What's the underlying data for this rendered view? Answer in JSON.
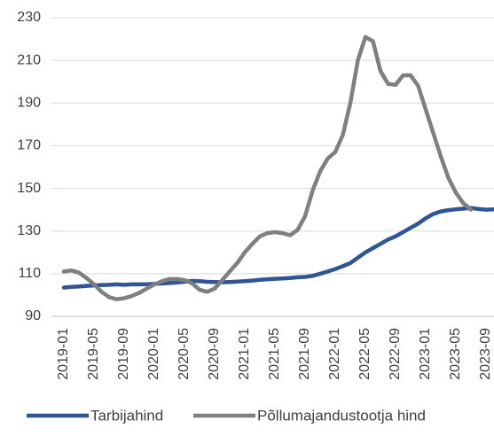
{
  "chart_data": {
    "type": "line",
    "categories": [
      "2019-01",
      null,
      null,
      null,
      "2019-05",
      null,
      null,
      null,
      "2019-09",
      null,
      null,
      null,
      "2020-01",
      null,
      null,
      null,
      "2020-05",
      null,
      null,
      null,
      "2020-09",
      null,
      null,
      null,
      "2021-01",
      null,
      null,
      null,
      "2021-05",
      null,
      null,
      null,
      "2021-09",
      null,
      null,
      null,
      "2022-01",
      null,
      null,
      null,
      "2022-05",
      null,
      null,
      null,
      "2022-09",
      null,
      null,
      null,
      "2023-01",
      null,
      null,
      null,
      "2023-05",
      null,
      null,
      null,
      "2023-09",
      null
    ],
    "series": [
      {
        "name": "Tarbijahind",
        "color": "#2f5597",
        "values": [
          103.5,
          103.8,
          104,
          104.3,
          104.5,
          104.7,
          104.8,
          105,
          104.8,
          105,
          105,
          105.1,
          105.2,
          105.4,
          105.6,
          105.9,
          106.2,
          106.6,
          106.5,
          106.2,
          106.1,
          106,
          106.1,
          106.3,
          106.5,
          106.8,
          107.1,
          107.4,
          107.6,
          107.8,
          108,
          108.3,
          108.5,
          109,
          110,
          111,
          112.2,
          113.5,
          115,
          117.5,
          120,
          122,
          124,
          126,
          127.5,
          129.5,
          131.5,
          133.5,
          136,
          138,
          139.2,
          139.8,
          140.2,
          140.5,
          140.8,
          140.3,
          140,
          140.2
        ]
      },
      {
        "name": "Põllumajandustootja hind",
        "color": "#7f7f7f",
        "values": [
          111,
          111.5,
          110.5,
          108,
          105,
          101.5,
          99,
          98,
          98.5,
          99.5,
          101,
          103,
          105,
          106.5,
          107.5,
          107.5,
          107,
          105.5,
          102.5,
          101.5,
          103,
          107,
          111,
          115,
          120,
          124,
          127.5,
          129,
          129.5,
          129,
          128,
          130.5,
          137,
          149,
          158,
          164,
          167,
          175,
          190,
          210,
          221,
          219,
          205,
          199,
          198.5,
          203,
          203,
          198,
          187,
          176,
          165,
          155,
          148,
          143,
          140,
          null,
          null,
          null
        ]
      }
    ],
    "ylim": [
      90,
      230
    ],
    "yticks": [
      90,
      110,
      130,
      150,
      170,
      190,
      210,
      230
    ],
    "grid": true,
    "legend": "bottom"
  }
}
